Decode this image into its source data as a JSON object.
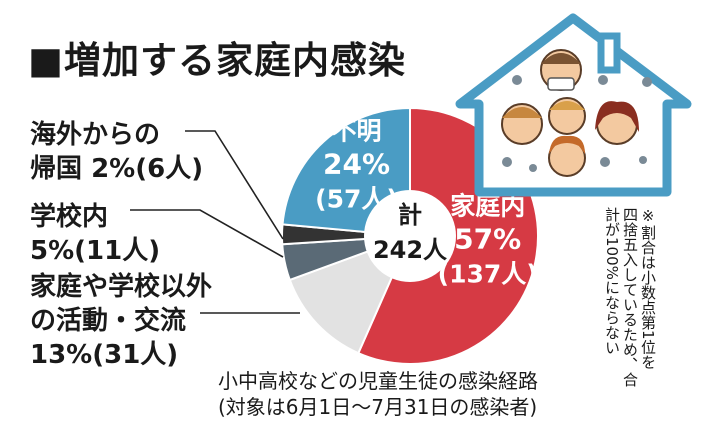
{
  "title": "■増加する家庭内感染",
  "chart_data": {
    "type": "pie",
    "title": "計",
    "total_label": "242人",
    "slices": [
      {
        "name": "家庭内",
        "percent_label": "57%",
        "count_label": "(137人)",
        "percent": 57,
        "count": 137,
        "color": "#d63a44",
        "label_color": "#ffffff"
      },
      {
        "name": "家庭や学校以外の活動・交流",
        "percent_label": "13%",
        "count_label": "(31人)",
        "percent": 13,
        "count": 31,
        "color": "#e2e2e2"
      },
      {
        "name": "学校内",
        "percent_label": "5%",
        "count_label": "(11人)",
        "percent": 5,
        "count": 11,
        "color": "#5a6a76"
      },
      {
        "name": "海外からの帰国",
        "percent_label": "2%",
        "count_label": "(6人)",
        "percent": 2,
        "count": 6,
        "color": "#333333"
      },
      {
        "name": "不明",
        "percent_label": "24%",
        "count_label": "(57人)",
        "percent": 24,
        "count": 57,
        "color": "#4a9cc4",
        "label_color": "#ffffff"
      }
    ]
  },
  "labels": {
    "overseas_line1": "海外からの",
    "overseas_line2": "帰国",
    "overseas_value": "2%(6人)",
    "school_line1": "学校内",
    "school_value": "5%(11人)",
    "other_line1": "家庭や学校以外",
    "other_line2": "の活動・交流",
    "other_value": "13%(31人)"
  },
  "caption": {
    "line1": "小中高校などの児童生徒の感染経路",
    "line2": "(対象は6月1日〜7月31日の感染者)"
  },
  "note": {
    "col1": "※割合は小数点第1位を",
    "col2": "四捨五入しているため、合",
    "col3": "計が100%にならない"
  },
  "colors": {
    "house_outline": "#4a9cc4",
    "virus": "#7a8a96"
  }
}
